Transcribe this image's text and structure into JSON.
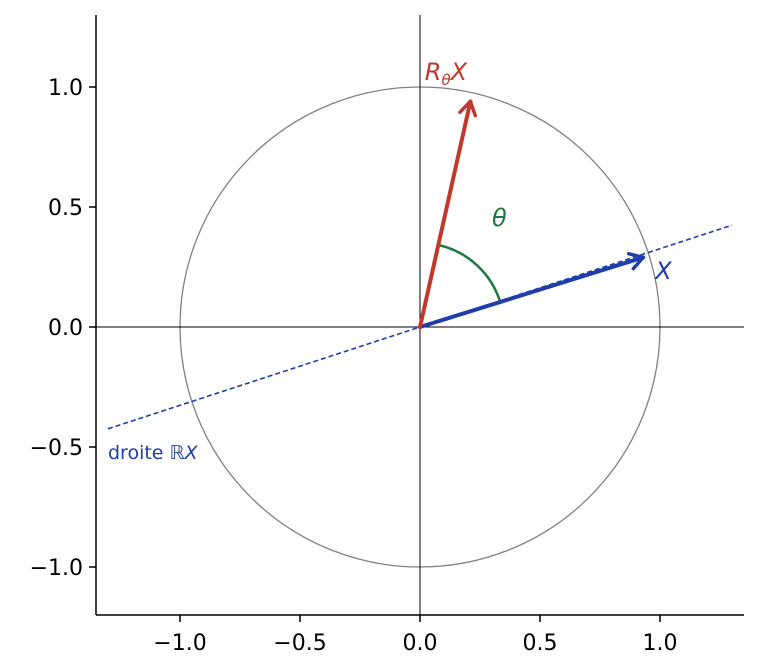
{
  "chart_data": {
    "type": "line",
    "title": "",
    "xlabel": "",
    "ylabel": "",
    "xlim": [
      -1.35,
      1.35
    ],
    "ylim": [
      -1.2,
      1.3
    ],
    "xticks": [
      -1.0,
      -0.5,
      0.0,
      0.5,
      1.0
    ],
    "xtick_labels": [
      "−1.0",
      "−0.5",
      "0.0",
      "0.5",
      "1.0"
    ],
    "yticks": [
      -1.0,
      -0.5,
      0.0,
      0.5,
      1.0
    ],
    "ytick_labels": [
      "−1.0",
      "−0.5",
      "0.0",
      "0.5",
      "1.0"
    ],
    "grid": false,
    "aspect": "equal",
    "colors": {
      "circle": "#808080",
      "axes_lines": "#000000",
      "vector_X": "#1f3ea8",
      "vector_RX": "#c0392b",
      "angle": "#1a7a40",
      "line_RX": "#1f3ea8"
    },
    "unit_circle": {
      "center": [
        0,
        0
      ],
      "radius": 1.0
    },
    "line_RX": {
      "direction": [
        0.95,
        0.31
      ],
      "x_range": [
        -1.3,
        1.3
      ],
      "style": "dashed"
    },
    "vectors": [
      {
        "id": "X",
        "from": [
          0,
          0
        ],
        "to": [
          0.93,
          0.29
        ]
      },
      {
        "id": "RX",
        "from": [
          0,
          0
        ],
        "to": [
          0.21,
          0.94
        ]
      }
    ],
    "angle_arc": {
      "radius": 0.35,
      "from_deg": 17.3,
      "to_deg": 77.4
    },
    "labels": {
      "X": {
        "text": "X",
        "x": 0.98,
        "y": 0.2
      },
      "RX": {
        "main_R": "R",
        "sub_theta": "θ",
        "main_X": "X",
        "x": 0.02,
        "y": 1.03
      },
      "theta": {
        "text": "θ",
        "x": 0.3,
        "y": 0.42
      },
      "line": {
        "prefix": "droite ",
        "math": "ℝX",
        "x": -1.3,
        "y": -0.55
      }
    }
  }
}
